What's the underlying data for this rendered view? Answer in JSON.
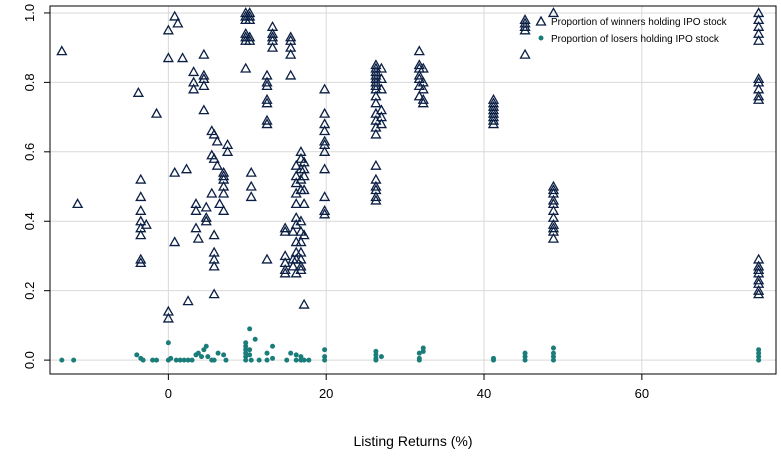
{
  "chart_data": {
    "type": "scatter",
    "xlabel": "Listing Returns (%)",
    "ylabel": "",
    "xlim": [
      -15,
      77
    ],
    "ylim": [
      -0.04,
      1.02
    ],
    "xticks": [
      0,
      20,
      40,
      60
    ],
    "yticks": [
      0.0,
      0.2,
      0.4,
      0.6,
      0.8,
      1.0
    ],
    "xtick_labels": [
      "0",
      "20",
      "40",
      "60"
    ],
    "ytick_labels": [
      "0.0",
      "0.2",
      "0.4",
      "0.6",
      "0.8",
      "1.0"
    ],
    "grid": true,
    "legend_position": "top-right",
    "series": [
      {
        "name": "Proportion of winners holding IPO stock",
        "marker": "triangle",
        "color": "#0b1f44",
        "points": [
          [
            -13.5,
            0.89
          ],
          [
            -11.5,
            0.45
          ],
          [
            -3.8,
            0.77
          ],
          [
            -3.5,
            0.52
          ],
          [
            -3.5,
            0.47
          ],
          [
            -3.5,
            0.43
          ],
          [
            -3.5,
            0.4
          ],
          [
            -3.5,
            0.38
          ],
          [
            -3.5,
            0.36
          ],
          [
            -3.5,
            0.29
          ],
          [
            -3.5,
            0.28
          ],
          [
            -2.8,
            0.39
          ],
          [
            -1.5,
            0.71
          ],
          [
            0,
            0.95
          ],
          [
            0,
            0.87
          ],
          [
            0,
            0.14
          ],
          [
            0,
            0.12
          ],
          [
            0.8,
            0.99
          ],
          [
            1.2,
            0.97
          ],
          [
            0.8,
            0.54
          ],
          [
            0.8,
            0.34
          ],
          [
            1.8,
            0.87
          ],
          [
            2.3,
            0.55
          ],
          [
            2.5,
            0.17
          ],
          [
            3.2,
            0.83
          ],
          [
            3.2,
            0.8
          ],
          [
            3.2,
            0.78
          ],
          [
            3.5,
            0.45
          ],
          [
            3.5,
            0.43
          ],
          [
            3.5,
            0.38
          ],
          [
            3.8,
            0.35
          ],
          [
            4.5,
            0.88
          ],
          [
            4.5,
            0.82
          ],
          [
            4.5,
            0.81
          ],
          [
            4.5,
            0.79
          ],
          [
            4.5,
            0.72
          ],
          [
            4.8,
            0.44
          ],
          [
            4.8,
            0.41
          ],
          [
            4.8,
            0.4
          ],
          [
            5.5,
            0.66
          ],
          [
            5.5,
            0.59
          ],
          [
            5.5,
            0.48
          ],
          [
            5.8,
            0.65
          ],
          [
            5.8,
            0.58
          ],
          [
            5.8,
            0.31
          ],
          [
            5.8,
            0.29
          ],
          [
            5.8,
            0.27
          ],
          [
            5.8,
            0.36
          ],
          [
            5.8,
            0.19
          ],
          [
            6.2,
            0.63
          ],
          [
            6.2,
            0.56
          ],
          [
            6.5,
            0.45
          ],
          [
            7,
            0.54
          ],
          [
            7,
            0.53
          ],
          [
            7,
            0.52
          ],
          [
            7,
            0.5
          ],
          [
            7,
            0.48
          ],
          [
            7,
            0.43
          ],
          [
            7.5,
            0.62
          ],
          [
            7.5,
            0.6
          ],
          [
            9.8,
            1.0
          ],
          [
            9.8,
            0.99
          ],
          [
            9.8,
            0.98
          ],
          [
            9.8,
            0.94
          ],
          [
            9.8,
            0.93
          ],
          [
            9.8,
            0.92
          ],
          [
            9.8,
            0.84
          ],
          [
            10.3,
            1.0
          ],
          [
            10.3,
            0.99
          ],
          [
            10.3,
            0.98
          ],
          [
            10.3,
            0.93
          ],
          [
            10.3,
            0.92
          ],
          [
            10.5,
            0.54
          ],
          [
            10.5,
            0.5
          ],
          [
            10.5,
            0.47
          ],
          [
            12.5,
            0.82
          ],
          [
            12.5,
            0.8
          ],
          [
            12.5,
            0.79
          ],
          [
            12.5,
            0.75
          ],
          [
            12.5,
            0.74
          ],
          [
            12.5,
            0.69
          ],
          [
            12.5,
            0.68
          ],
          [
            12.5,
            0.29
          ],
          [
            13.2,
            0.96
          ],
          [
            13.2,
            0.94
          ],
          [
            13.2,
            0.93
          ],
          [
            13.2,
            0.92
          ],
          [
            13.2,
            0.9
          ],
          [
            14.8,
            0.38
          ],
          [
            14.8,
            0.37
          ],
          [
            14.8,
            0.3
          ],
          [
            14.8,
            0.28
          ],
          [
            14.8,
            0.26
          ],
          [
            14.8,
            0.25
          ],
          [
            15.5,
            0.93
          ],
          [
            15.5,
            0.92
          ],
          [
            15.5,
            0.9
          ],
          [
            15.5,
            0.88
          ],
          [
            15.5,
            0.82
          ],
          [
            15.8,
            0.37
          ],
          [
            15.8,
            0.29
          ],
          [
            15.8,
            0.27
          ],
          [
            16.2,
            0.56
          ],
          [
            16.2,
            0.53
          ],
          [
            16.2,
            0.51
          ],
          [
            16.2,
            0.48
          ],
          [
            16.2,
            0.45
          ],
          [
            16.2,
            0.41
          ],
          [
            16.2,
            0.39
          ],
          [
            16.2,
            0.34
          ],
          [
            16.2,
            0.31
          ],
          [
            16.2,
            0.29
          ],
          [
            16.2,
            0.25
          ],
          [
            16.8,
            0.6
          ],
          [
            16.8,
            0.58
          ],
          [
            16.8,
            0.55
          ],
          [
            16.8,
            0.52
          ],
          [
            16.8,
            0.49
          ],
          [
            16.8,
            0.4
          ],
          [
            16.8,
            0.37
          ],
          [
            16.8,
            0.34
          ],
          [
            16.8,
            0.31
          ],
          [
            16.8,
            0.29
          ],
          [
            16.8,
            0.27
          ],
          [
            16.8,
            0.26
          ],
          [
            17.2,
            0.57
          ],
          [
            17.2,
            0.55
          ],
          [
            17.2,
            0.53
          ],
          [
            17.2,
            0.49
          ],
          [
            17.2,
            0.45
          ],
          [
            17.2,
            0.36
          ],
          [
            17.2,
            0.16
          ],
          [
            19.8,
            0.78
          ],
          [
            19.8,
            0.71
          ],
          [
            19.8,
            0.68
          ],
          [
            19.8,
            0.66
          ],
          [
            19.8,
            0.63
          ],
          [
            19.8,
            0.62
          ],
          [
            19.8,
            0.6
          ],
          [
            19.8,
            0.55
          ],
          [
            19.8,
            0.47
          ],
          [
            19.8,
            0.43
          ],
          [
            19.8,
            0.42
          ],
          [
            26.3,
            0.85
          ],
          [
            26.3,
            0.84
          ],
          [
            26.3,
            0.83
          ],
          [
            26.3,
            0.82
          ],
          [
            26.3,
            0.81
          ],
          [
            26.3,
            0.8
          ],
          [
            26.3,
            0.79
          ],
          [
            26.3,
            0.78
          ],
          [
            26.3,
            0.76
          ],
          [
            26.3,
            0.74
          ],
          [
            26.3,
            0.71
          ],
          [
            26.3,
            0.69
          ],
          [
            26.3,
            0.67
          ],
          [
            26.3,
            0.65
          ],
          [
            26.3,
            0.56
          ],
          [
            26.3,
            0.52
          ],
          [
            26.3,
            0.5
          ],
          [
            26.3,
            0.49
          ],
          [
            26.3,
            0.47
          ],
          [
            26.3,
            0.46
          ],
          [
            27.0,
            0.84
          ],
          [
            27.0,
            0.81
          ],
          [
            27.0,
            0.78
          ],
          [
            27.0,
            0.72
          ],
          [
            27.0,
            0.7
          ],
          [
            27.0,
            0.68
          ],
          [
            31.8,
            0.89
          ],
          [
            31.8,
            0.85
          ],
          [
            31.8,
            0.84
          ],
          [
            31.8,
            0.82
          ],
          [
            31.8,
            0.81
          ],
          [
            31.8,
            0.79
          ],
          [
            31.8,
            0.76
          ],
          [
            32.3,
            0.84
          ],
          [
            32.3,
            0.8
          ],
          [
            32.3,
            0.78
          ],
          [
            32.3,
            0.75
          ],
          [
            32.3,
            0.74
          ],
          [
            41.2,
            0.75
          ],
          [
            41.2,
            0.74
          ],
          [
            41.2,
            0.73
          ],
          [
            41.2,
            0.72
          ],
          [
            41.2,
            0.71
          ],
          [
            41.2,
            0.7
          ],
          [
            41.2,
            0.69
          ],
          [
            41.2,
            0.68
          ],
          [
            45.2,
            0.98
          ],
          [
            45.2,
            0.97
          ],
          [
            45.2,
            0.96
          ],
          [
            45.2,
            0.95
          ],
          [
            45.2,
            0.88
          ],
          [
            48.8,
            1.0
          ],
          [
            48.8,
            0.5
          ],
          [
            48.8,
            0.49
          ],
          [
            48.8,
            0.48
          ],
          [
            48.8,
            0.46
          ],
          [
            48.8,
            0.45
          ],
          [
            48.8,
            0.43
          ],
          [
            48.8,
            0.41
          ],
          [
            48.8,
            0.39
          ],
          [
            48.8,
            0.38
          ],
          [
            48.8,
            0.37
          ],
          [
            48.8,
            0.35
          ],
          [
            74.8,
            1.0
          ],
          [
            74.8,
            0.98
          ],
          [
            74.8,
            0.96
          ],
          [
            74.8,
            0.94
          ],
          [
            74.8,
            0.92
          ],
          [
            74.8,
            0.81
          ],
          [
            74.8,
            0.8
          ],
          [
            74.8,
            0.78
          ],
          [
            74.8,
            0.76
          ],
          [
            74.8,
            0.75
          ],
          [
            74.8,
            0.29
          ],
          [
            74.8,
            0.27
          ],
          [
            74.8,
            0.26
          ],
          [
            74.8,
            0.25
          ],
          [
            74.8,
            0.23
          ],
          [
            74.8,
            0.22
          ],
          [
            74.8,
            0.2
          ],
          [
            74.8,
            0.19
          ]
        ]
      },
      {
        "name": "Proportion of losers holding IPO stock",
        "marker": "circle",
        "color": "#1a7d7a",
        "points": [
          [
            -13.5,
            0.0
          ],
          [
            -12.0,
            0.0
          ],
          [
            -4.0,
            0.015
          ],
          [
            -3.5,
            0.005
          ],
          [
            -3.2,
            0.0
          ],
          [
            -2.0,
            0.0
          ],
          [
            -1.5,
            0.0
          ],
          [
            0,
            0.05
          ],
          [
            0,
            0.0
          ],
          [
            0.3,
            0.005
          ],
          [
            1.0,
            0.0
          ],
          [
            1.5,
            0.0
          ],
          [
            2.0,
            0.0
          ],
          [
            2.5,
            0.0
          ],
          [
            3.0,
            0.0
          ],
          [
            3.5,
            0.015
          ],
          [
            3.8,
            0.02
          ],
          [
            4.2,
            0.01
          ],
          [
            4.5,
            0.03
          ],
          [
            4.8,
            0.04
          ],
          [
            5.0,
            0.01
          ],
          [
            5.5,
            0.0
          ],
          [
            5.8,
            0.0
          ],
          [
            6.3,
            0.02
          ],
          [
            7.0,
            0.015
          ],
          [
            7.3,
            0.0
          ],
          [
            9.8,
            0.05
          ],
          [
            9.8,
            0.04
          ],
          [
            9.8,
            0.03
          ],
          [
            9.8,
            0.02
          ],
          [
            9.8,
            0.01
          ],
          [
            9.8,
            0.0
          ],
          [
            10.3,
            0.09
          ],
          [
            10.3,
            0.03
          ],
          [
            10.3,
            0.015
          ],
          [
            10.5,
            0.0
          ],
          [
            11.0,
            0.06
          ],
          [
            11.5,
            0.0
          ],
          [
            12.5,
            0.02
          ],
          [
            12.5,
            0.0
          ],
          [
            13.2,
            0.04
          ],
          [
            13.2,
            0.005
          ],
          [
            15.0,
            0.0
          ],
          [
            15.5,
            0.02
          ],
          [
            16.2,
            0.015
          ],
          [
            16.2,
            0.0
          ],
          [
            16.8,
            0.01
          ],
          [
            16.8,
            0.0
          ],
          [
            17.2,
            0.0
          ],
          [
            17.8,
            0.0
          ],
          [
            19.8,
            0.03
          ],
          [
            19.8,
            0.01
          ],
          [
            19.8,
            0.0
          ],
          [
            26.3,
            0.025
          ],
          [
            26.3,
            0.015
          ],
          [
            26.3,
            0.005
          ],
          [
            26.3,
            0.0
          ],
          [
            27.0,
            0.01
          ],
          [
            31.8,
            0.02
          ],
          [
            31.8,
            0.005
          ],
          [
            31.8,
            0.0
          ],
          [
            32.3,
            0.035
          ],
          [
            32.3,
            0.025
          ],
          [
            41.2,
            0.005
          ],
          [
            41.2,
            0.0
          ],
          [
            45.2,
            0.02
          ],
          [
            45.2,
            0.01
          ],
          [
            45.2,
            0.0
          ],
          [
            48.8,
            0.035
          ],
          [
            48.8,
            0.02
          ],
          [
            48.8,
            0.01
          ],
          [
            48.8,
            0.0
          ],
          [
            74.8,
            0.03
          ],
          [
            74.8,
            0.02
          ],
          [
            74.8,
            0.01
          ],
          [
            74.8,
            0.0
          ]
        ]
      }
    ]
  }
}
